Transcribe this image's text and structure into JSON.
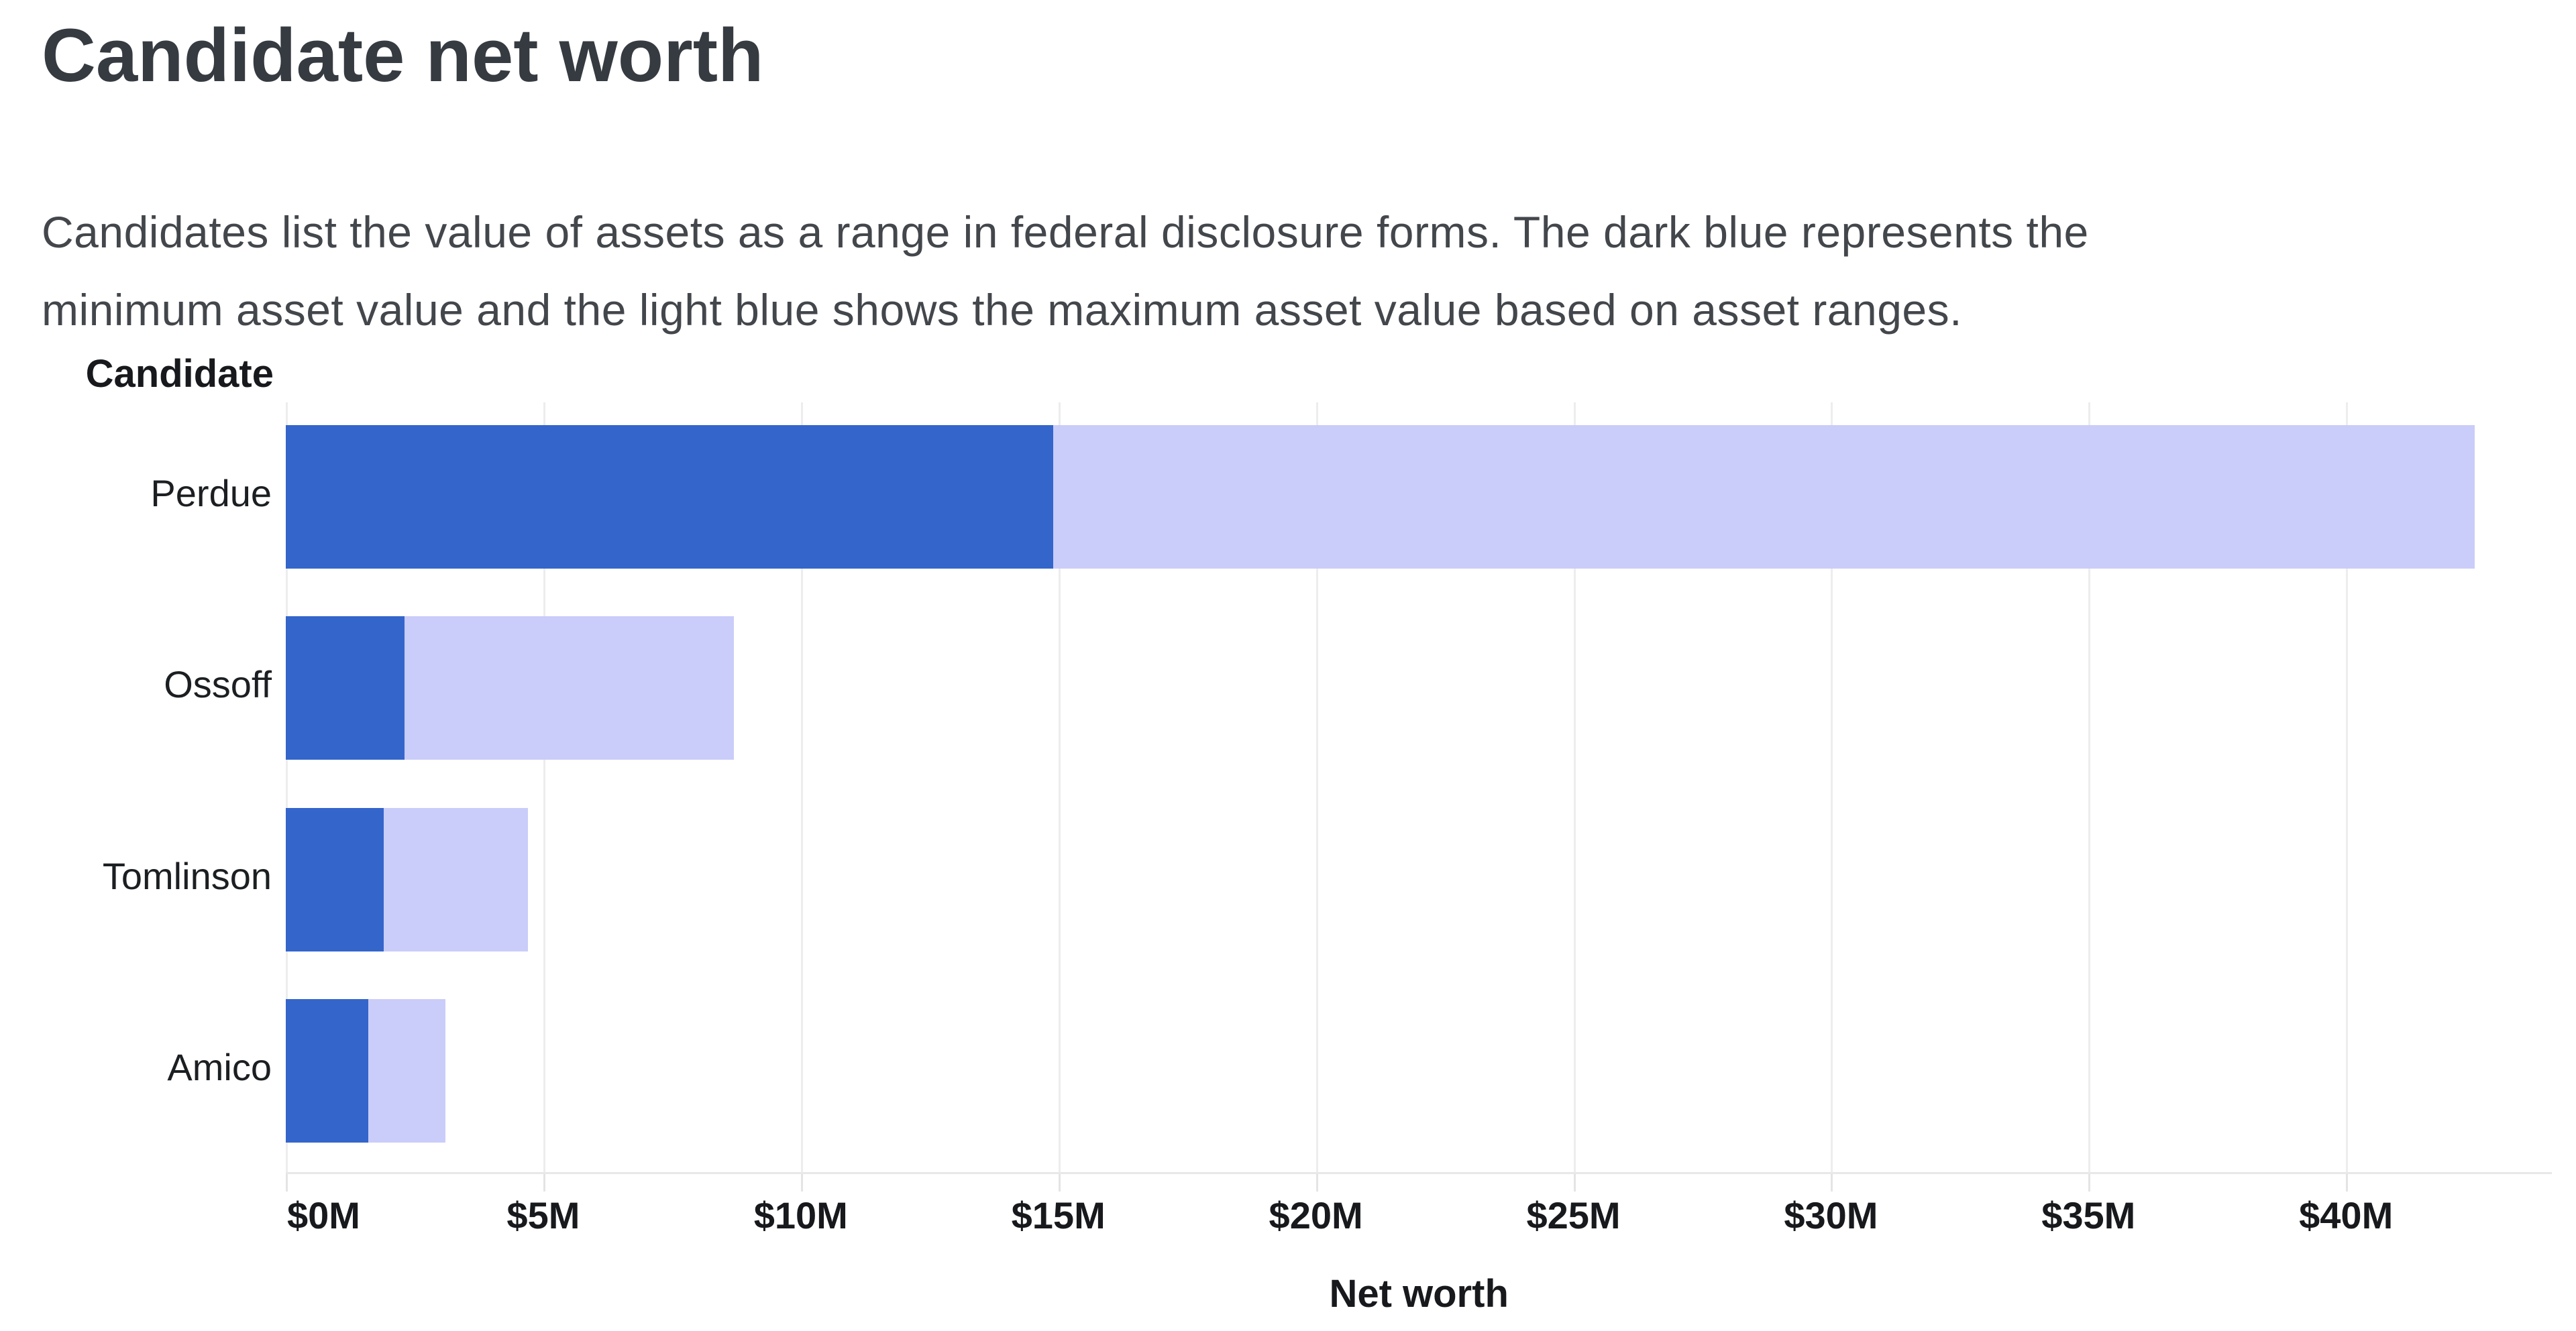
{
  "title": "Candidate net worth",
  "subtitle_lines": [
    "Candidates list the value of assets as a range in federal disclosure forms. The dark blue represents the",
    "minimum asset value and the light blue shows the maximum asset value based on asset ranges."
  ],
  "chart_data": {
    "type": "bar",
    "orientation": "horizontal",
    "title": "Candidate net worth",
    "row_axis_label": "Candidate",
    "xlabel": "Net worth",
    "categories": [
      "Perdue",
      "Ossoff",
      "Tomlinson",
      "Amico"
    ],
    "series": [
      {
        "name": "Minimum asset value (dark blue)",
        "color": "#3465cb",
        "values": [
          14.9,
          2.3,
          1.9,
          1.6
        ]
      },
      {
        "name": "Maximum asset value (light blue)",
        "color": "#cacdf9",
        "values": [
          42.5,
          8.7,
          4.7,
          3.1
        ]
      }
    ],
    "x_ticks": [
      "$0M",
      "$5M",
      "$10M",
      "$15M",
      "$20M",
      "$25M",
      "$30M",
      "$35M",
      "$40M"
    ],
    "x_tick_values": [
      0,
      5,
      10,
      15,
      20,
      25,
      30,
      35,
      40
    ],
    "xlim": [
      0,
      44
    ],
    "grid": "vertical-gridlines",
    "legend_position": "none"
  },
  "colors": {
    "min_bar": "#3465cb",
    "max_bar": "#cacdf9",
    "gridline": "#ededed",
    "axis_line": "#e8e8e8",
    "title_text": "#363b41",
    "subtitle_text": "#43474c",
    "label_text": "#17191c",
    "background": "#ffffff"
  }
}
